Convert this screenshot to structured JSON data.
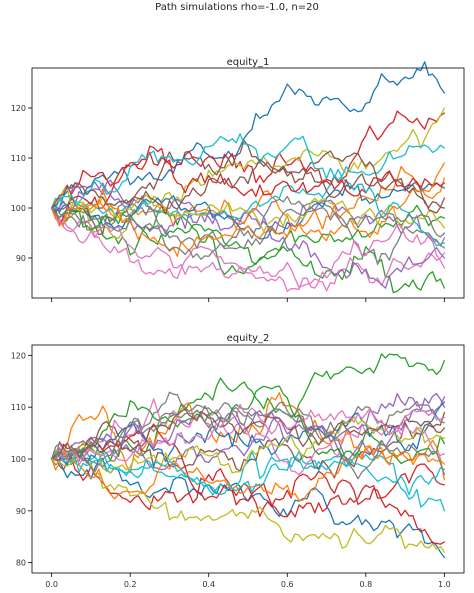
{
  "suptitle": "Path simulations rho=-1.0, n=20",
  "chart_data": [
    {
      "type": "line",
      "title": "equity_1",
      "xlabel": "",
      "ylabel": "",
      "xlim": [
        -0.05,
        1.05
      ],
      "ylim": [
        82,
        128
      ],
      "x_ticks": [
        0.0,
        0.2,
        0.4,
        0.6,
        0.8,
        1.0
      ],
      "x_ticklabels_visible": false,
      "y_ticks": [
        90,
        100,
        110,
        120
      ],
      "grid": false,
      "n_paths": 20,
      "start_value": 100,
      "end_values": [
        123,
        119,
        84,
        92,
        120,
        106,
        112,
        102,
        91,
        94,
        104,
        105,
        98,
        90,
        96,
        109,
        93,
        100,
        88,
        95
      ],
      "series_colors": [
        "#1f77b4",
        "#d62728",
        "#2ca02c",
        "#9467bd",
        "#bcbd22",
        "#ff7f0e",
        "#17becf",
        "#8c564b",
        "#e377c2",
        "#7f7f7f",
        "#1f77b4",
        "#d62728",
        "#2ca02c",
        "#9467bd",
        "#bcbd22",
        "#ff7f0e",
        "#17becf",
        "#8c564b",
        "#e377c2",
        "#7f7f7f"
      ]
    },
    {
      "type": "line",
      "title": "equity_2",
      "xlabel": "",
      "ylabel": "",
      "xlim": [
        -0.05,
        1.05
      ],
      "ylim": [
        78,
        122
      ],
      "x_ticks": [
        0.0,
        0.2,
        0.4,
        0.6,
        0.8,
        1.0
      ],
      "x_ticklabels": [
        "0.0",
        "0.2",
        "0.4",
        "0.6",
        "0.8",
        "1.0"
      ],
      "y_ticks": [
        80,
        90,
        100,
        110,
        120
      ],
      "grid": false,
      "n_paths": 20,
      "start_value": 100,
      "end_values": [
        81,
        84,
        119,
        110,
        82,
        96,
        90,
        109,
        101,
        107,
        111,
        95,
        103,
        112,
        104,
        99,
        98,
        106,
        108,
        97
      ],
      "series_colors": [
        "#1f77b4",
        "#d62728",
        "#2ca02c",
        "#9467bd",
        "#bcbd22",
        "#ff7f0e",
        "#17becf",
        "#8c564b",
        "#e377c2",
        "#7f7f7f",
        "#1f77b4",
        "#d62728",
        "#2ca02c",
        "#9467bd",
        "#bcbd22",
        "#ff7f0e",
        "#17becf",
        "#8c564b",
        "#e377c2",
        "#7f7f7f"
      ]
    }
  ]
}
